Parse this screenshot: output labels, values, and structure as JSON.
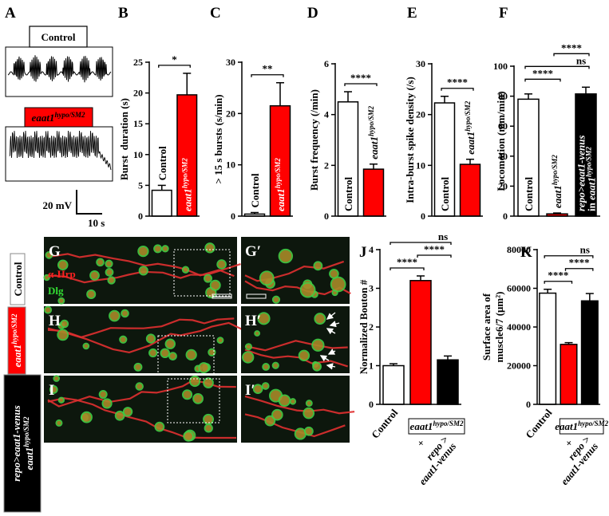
{
  "panel_a": {
    "label": "A",
    "control": "Control",
    "mutant": [
      [
        {
          "text": "eaat1",
          "italic": true
        },
        {
          "text": "hypo/SM2",
          "italic": true,
          "sup": true
        }
      ]
    ],
    "scale_v": "20 mV",
    "scale_t": "10 s"
  },
  "chart_data": [
    {
      "type": "bar",
      "panel": "B",
      "ylabel": [
        "Burst  duration (s)"
      ],
      "categories": [
        [
          [
            {
              "text": "Control"
            }
          ]
        ],
        [
          [
            {
              "text": "eaat1",
              "italic": true
            },
            {
              "text": "hypo/SM2",
              "italic": true,
              "sup": true
            }
          ]
        ]
      ],
      "values": [
        4.2,
        19.7
      ],
      "errors": [
        0.8,
        3.5
      ],
      "colors": [
        "#ffffff",
        "#ff0000"
      ],
      "ylim": [
        0,
        25
      ],
      "yticks": [
        0,
        5,
        10,
        15,
        20,
        25
      ],
      "significance": [
        {
          "from": 0,
          "to": 1,
          "label": "*"
        }
      ]
    },
    {
      "type": "bar",
      "panel": "C",
      "ylabel": [
        "> 15 s bursts (s/min)"
      ],
      "categories": [
        [
          [
            {
              "text": "Control"
            }
          ]
        ],
        [
          [
            {
              "text": "eaat1",
              "italic": true
            },
            {
              "text": "hypo/SM2",
              "italic": true,
              "sup": true
            }
          ]
        ]
      ],
      "values": [
        0.4,
        21.5
      ],
      "errors": [
        0.3,
        4.5
      ],
      "colors": [
        "#ffffff",
        "#ff0000"
      ],
      "ylim": [
        0,
        30
      ],
      "yticks": [
        0,
        10,
        20,
        30
      ],
      "significance": [
        {
          "from": 0,
          "to": 1,
          "label": "**"
        }
      ]
    },
    {
      "type": "bar",
      "panel": "D",
      "ylabel": [
        "Burst frequency (/min)"
      ],
      "categories": [
        [
          [
            {
              "text": "Control"
            }
          ]
        ],
        [
          [
            {
              "text": "eaat1",
              "italic": true
            },
            {
              "text": "hypo/SM2",
              "italic": true,
              "sup": true
            }
          ]
        ]
      ],
      "values": [
        4.5,
        1.85
      ],
      "errors": [
        0.4,
        0.2
      ],
      "colors": [
        "#ffffff",
        "#ff0000"
      ],
      "ylim": [
        0,
        6
      ],
      "yticks": [
        0,
        2,
        4,
        6
      ],
      "significance": [
        {
          "from": 0,
          "to": 1,
          "label": "****"
        }
      ]
    },
    {
      "type": "bar",
      "panel": "E",
      "ylabel": [
        "Intra-burst spike density (/s)"
      ],
      "categories": [
        [
          [
            {
              "text": "Control"
            }
          ]
        ],
        [
          [
            {
              "text": "eaat1",
              "italic": true
            },
            {
              "text": "hypo/SM2",
              "italic": true,
              "sup": true
            }
          ]
        ]
      ],
      "values": [
        22.3,
        10.2
      ],
      "errors": [
        1.3,
        1.0
      ],
      "colors": [
        "#ffffff",
        "#ff0000"
      ],
      "ylim": [
        0,
        30
      ],
      "yticks": [
        0,
        10,
        20,
        30
      ],
      "significance": [
        {
          "from": 0,
          "to": 1,
          "label": "****"
        }
      ]
    },
    {
      "type": "bar",
      "panel": "F",
      "ylabel": [
        "Locomotion (mm/min)"
      ],
      "categories": [
        [
          [
            {
              "text": "Control"
            }
          ]
        ],
        [
          [
            {
              "text": "eaat1",
              "italic": true
            },
            {
              "text": "hypo/SM2",
              "italic": true,
              "sup": true
            }
          ]
        ],
        [
          [
            {
              "text": "repo>eaat1-venus",
              "italic": true
            }
          ],
          [
            {
              "text": "in "
            },
            {
              "text": "eaat1",
              "italic": true
            },
            {
              "text": "hypo/SM2",
              "italic": true,
              "sup": true
            }
          ]
        ]
      ],
      "values": [
        78,
        1.5,
        81.5
      ],
      "errors": [
        3.5,
        0.6,
        4.5
      ],
      "colors": [
        "#ffffff",
        "#ff0000",
        "#000000"
      ],
      "ylim": [
        0,
        100
      ],
      "yticks": [
        0,
        20,
        40,
        60,
        80,
        100
      ],
      "significance": [
        {
          "from": 0,
          "to": 1,
          "label": "****"
        },
        {
          "from": 0,
          "to": 2,
          "label": "ns"
        },
        {
          "from": 1,
          "to": 2,
          "label": "****"
        }
      ]
    },
    {
      "type": "bar",
      "panel": "J",
      "ylabel": [
        "Normalized Bouton #"
      ],
      "categories": [
        [
          [
            {
              "text": "Control"
            }
          ]
        ],
        [
          [
            {
              "text": "+"
            }
          ]
        ],
        [
          [
            {
              "text": "repo >",
              "italic": true
            }
          ],
          [
            {
              "text": "eaat1-venus",
              "italic": true
            }
          ]
        ]
      ],
      "group_label": [
        [
          {
            "text": "eaat1",
            "italic": true
          },
          {
            "text": "hypo/SM2",
            "italic": true,
            "sup": true
          }
        ]
      ],
      "values": [
        1.0,
        3.2,
        1.15
      ],
      "errors": [
        0.05,
        0.12,
        0.1
      ],
      "colors": [
        "#ffffff",
        "#ff0000",
        "#000000"
      ],
      "ylim": [
        0,
        4
      ],
      "yticks": [
        0,
        1,
        2,
        3,
        4
      ],
      "significance": [
        {
          "from": 0,
          "to": 1,
          "label": "****"
        },
        {
          "from": 1,
          "to": 2,
          "label": "****"
        },
        {
          "from": 0,
          "to": 2,
          "label": "ns"
        }
      ]
    },
    {
      "type": "bar",
      "panel": "K",
      "ylabel": [
        "Surface area of",
        "muscle6/7 (μm²)"
      ],
      "categories": [
        [
          [
            {
              "text": "Control"
            }
          ]
        ],
        [
          [
            {
              "text": "+"
            }
          ]
        ],
        [
          [
            {
              "text": "repo >",
              "italic": true
            }
          ],
          [
            {
              "text": "eaat1-venus",
              "italic": true
            }
          ]
        ]
      ],
      "group_label": [
        [
          {
            "text": "eaat1",
            "italic": true
          },
          {
            "text": "hypo/SM2",
            "italic": true,
            "sup": true
          }
        ]
      ],
      "values": [
        57500,
        31000,
        53500
      ],
      "errors": [
        2000,
        900,
        3800
      ],
      "colors": [
        "#ffffff",
        "#ff0000",
        "#000000"
      ],
      "ylim": [
        0,
        80000
      ],
      "yticks": [
        0,
        20000,
        40000,
        60000,
        80000
      ],
      "significance": [
        {
          "from": 0,
          "to": 1,
          "label": "****"
        },
        {
          "from": 1,
          "to": 2,
          "label": "****"
        },
        {
          "from": 0,
          "to": 2,
          "label": "ns"
        }
      ]
    }
  ],
  "staining": {
    "hrp": "α-Hrp",
    "dlg": "Dlg"
  },
  "image_rows": [
    {
      "row_label": [
        [
          {
            "text": "Control"
          }
        ]
      ],
      "images": [
        "G",
        "G′"
      ]
    },
    {
      "row_label": [
        [
          {
            "text": "eaat1",
            "italic": true
          },
          {
            "text": "hypo/SM2",
            "italic": true,
            "sup": true
          }
        ]
      ],
      "images": [
        "H",
        "H′"
      ]
    },
    {
      "row_label": [
        [
          {
            "text": "repo>eaat1-venus",
            "italic": true
          }
        ],
        [
          {
            "text": "eaat1",
            "italic": true
          },
          {
            "text": "hypo/SM2",
            "italic": true,
            "sup": true
          }
        ]
      ],
      "images": [
        "I",
        "I′"
      ]
    }
  ]
}
